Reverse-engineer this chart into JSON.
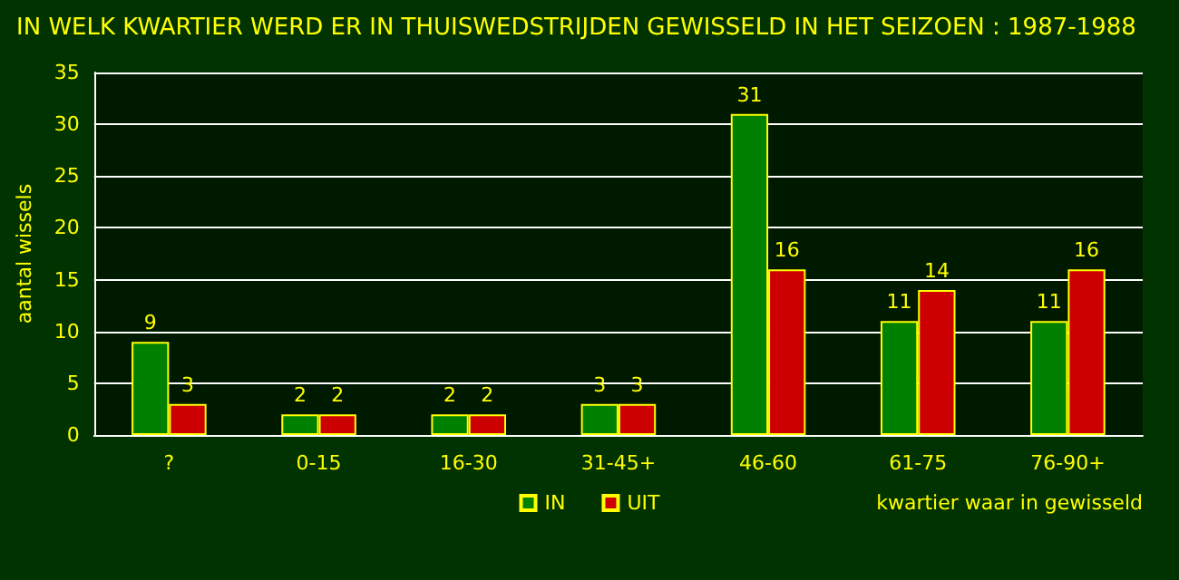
{
  "chart_data": {
    "type": "bar",
    "title": "IN WELK KWARTIER WERD ER IN THUISWEDSTRIJDEN GEWISSELD IN HET SEIZOEN : 1987-1988",
    "xlabel": "kwartier waar in gewisseld",
    "ylabel": "aantal wissels",
    "categories": [
      "?",
      "0-15",
      "16-30",
      "31-45+",
      "46-60",
      "61-75",
      "76-90+"
    ],
    "series": [
      {
        "name": "IN",
        "color": "#008000",
        "values": [
          9,
          2,
          2,
          3,
          31,
          11,
          11
        ]
      },
      {
        "name": "UIT",
        "color": "#cc0000",
        "values": [
          3,
          2,
          2,
          3,
          16,
          14,
          16
        ]
      }
    ],
    "ylim": [
      0,
      35
    ],
    "yticks": [
      0,
      5,
      10,
      15,
      20,
      25,
      30,
      35
    ],
    "grid": "y",
    "legend": "bottom",
    "data_labels": true
  }
}
